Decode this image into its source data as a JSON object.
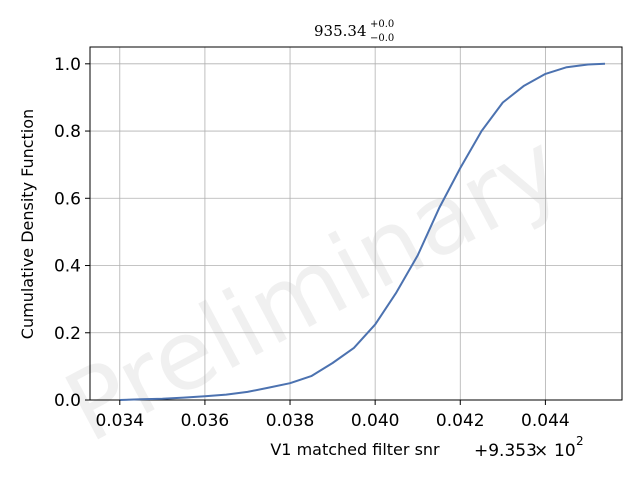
{
  "chart_data": {
    "type": "line",
    "title": {
      "base": "935.34",
      "sup": "+0.0",
      "sub": "−0.0"
    },
    "xlabel": "V1 matched filter snr",
    "ylabel": "Cumulative Density Function",
    "x_offset": {
      "prefix": "+9.353",
      "times": "×",
      "base": "10",
      "exp": "2"
    },
    "watermark": "Preliminary",
    "xlim": [
      0.0333,
      0.0458
    ],
    "ylim": [
      0.0,
      1.05
    ],
    "x_ticks": [
      {
        "value": 0.034,
        "label": "0.034"
      },
      {
        "value": 0.036,
        "label": "0.036"
      },
      {
        "value": 0.038,
        "label": "0.038"
      },
      {
        "value": 0.04,
        "label": "0.040"
      },
      {
        "value": 0.042,
        "label": "0.042"
      },
      {
        "value": 0.044,
        "label": "0.044"
      }
    ],
    "y_ticks": [
      {
        "value": 0.0,
        "label": "0.0"
      },
      {
        "value": 0.2,
        "label": "0.2"
      },
      {
        "value": 0.4,
        "label": "0.4"
      },
      {
        "value": 0.6,
        "label": "0.6"
      },
      {
        "value": 0.8,
        "label": "0.8"
      },
      {
        "value": 1.0,
        "label": "1.0"
      }
    ],
    "grid": true,
    "series": [
      {
        "color": "#4c72b0",
        "x": [
          0.034,
          0.0345,
          0.035,
          0.0355,
          0.036,
          0.0365,
          0.037,
          0.0375,
          0.038,
          0.0385,
          0.039,
          0.0395,
          0.04,
          0.0405,
          0.041,
          0.0415,
          0.042,
          0.0425,
          0.043,
          0.0435,
          0.044,
          0.0445,
          0.045,
          0.0454
        ],
        "y": [
          0.0,
          0.002,
          0.004,
          0.007,
          0.011,
          0.016,
          0.024,
          0.037,
          0.05,
          0.071,
          0.11,
          0.155,
          0.225,
          0.32,
          0.43,
          0.57,
          0.69,
          0.8,
          0.885,
          0.935,
          0.97,
          0.99,
          0.998,
          1.0
        ]
      }
    ]
  }
}
